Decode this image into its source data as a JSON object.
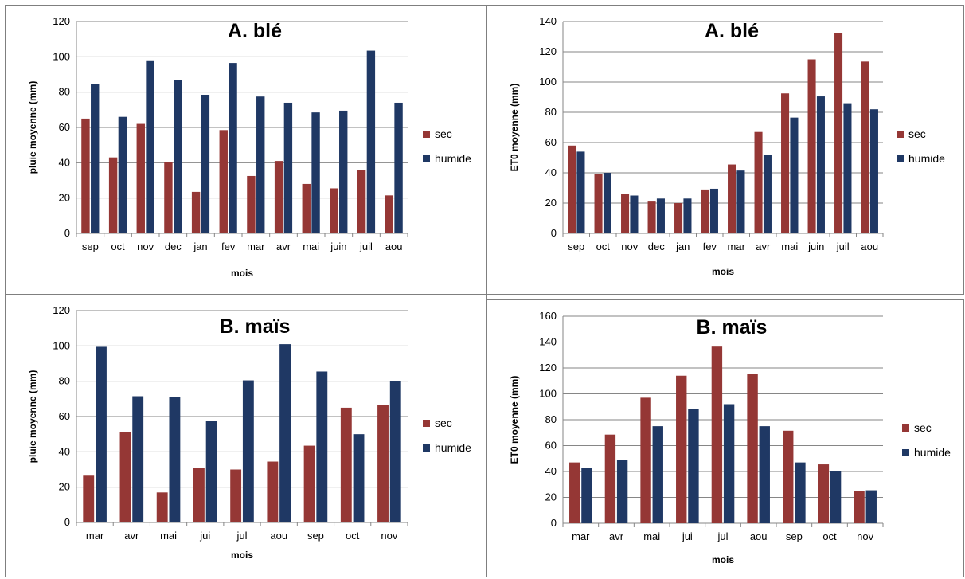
{
  "colors": {
    "sec": "#953735",
    "humide": "#1f3864",
    "grid": "#868686",
    "axis": "#868686"
  },
  "chart_data": [
    {
      "type": "bar",
      "title": "A. blé",
      "xlabel": "mois",
      "ylabel": "pluie moyenne (mm)",
      "ylim": [
        0,
        120
      ],
      "yticks": [
        "0",
        "20",
        "40",
        "60",
        "80",
        "100",
        "120"
      ],
      "categories": [
        "sep",
        "oct",
        "nov",
        "dec",
        "jan",
        "fev",
        "mar",
        "avr",
        "mai",
        "juin",
        "juil",
        "aou"
      ],
      "series": [
        {
          "name": "sec",
          "values": [
            65,
            43,
            62,
            40.5,
            23.5,
            58.5,
            32.5,
            41,
            28,
            25.5,
            36,
            21.5
          ]
        },
        {
          "name": "humide",
          "values": [
            84.5,
            66,
            98,
            87,
            78.5,
            96.5,
            77.5,
            74,
            68.5,
            69.5,
            103.5,
            74
          ]
        }
      ],
      "grid": true,
      "legend": "right"
    },
    {
      "type": "bar",
      "title": "A. blé",
      "xlabel": "mois",
      "ylabel": "ET0 moyenne (mm)",
      "ylim": [
        0,
        140
      ],
      "yticks": [
        "0",
        "20",
        "40",
        "60",
        "80",
        "100",
        "120",
        "140"
      ],
      "categories": [
        "sep",
        "oct",
        "nov",
        "dec",
        "jan",
        "fev",
        "mar",
        "avr",
        "mai",
        "juin",
        "juil",
        "aou"
      ],
      "series": [
        {
          "name": "sec",
          "values": [
            58,
            39,
            26,
            21,
            20,
            29,
            45.5,
            67,
            92.5,
            115,
            132.5,
            113.5
          ]
        },
        {
          "name": "humide",
          "values": [
            54,
            40,
            25,
            23,
            23,
            29.5,
            41.5,
            52,
            76.5,
            90.5,
            86,
            82
          ]
        }
      ],
      "grid": true,
      "legend": "right"
    },
    {
      "type": "bar",
      "title": "B. maïs",
      "xlabel": "mois",
      "ylabel": "pluie moyenne (mm)",
      "ylim": [
        0,
        120
      ],
      "yticks": [
        "0",
        "20",
        "40",
        "60",
        "80",
        "100",
        "120"
      ],
      "categories": [
        "mar",
        "avr",
        "mai",
        "jui",
        "jul",
        "aou",
        "sep",
        "oct",
        "nov"
      ],
      "series": [
        {
          "name": "sec",
          "values": [
            26.5,
            51,
            17,
            31,
            30,
            34.5,
            43.5,
            65,
            66.5
          ]
        },
        {
          "name": "humide",
          "values": [
            99.5,
            71.5,
            71,
            57.5,
            80.5,
            101,
            85.5,
            50,
            80
          ]
        }
      ],
      "grid": true,
      "legend": "right"
    },
    {
      "type": "bar",
      "title": "B. maïs",
      "xlabel": "mois",
      "ylabel": "ET0 moyenne (mm)",
      "ylim": [
        0,
        160
      ],
      "yticks": [
        "0",
        "20",
        "40",
        "60",
        "80",
        "100",
        "120",
        "140",
        "160"
      ],
      "categories": [
        "mar",
        "avr",
        "mai",
        "jui",
        "jul",
        "aou",
        "sep",
        "oct",
        "nov"
      ],
      "series": [
        {
          "name": "sec",
          "values": [
            47,
            68.5,
            97,
            114,
            136.5,
            115.5,
            71.5,
            45.5,
            25
          ]
        },
        {
          "name": "humide",
          "values": [
            43,
            49,
            75,
            88.5,
            92,
            75,
            47,
            40,
            25.5
          ]
        }
      ],
      "grid": true,
      "legend": "right"
    }
  ]
}
